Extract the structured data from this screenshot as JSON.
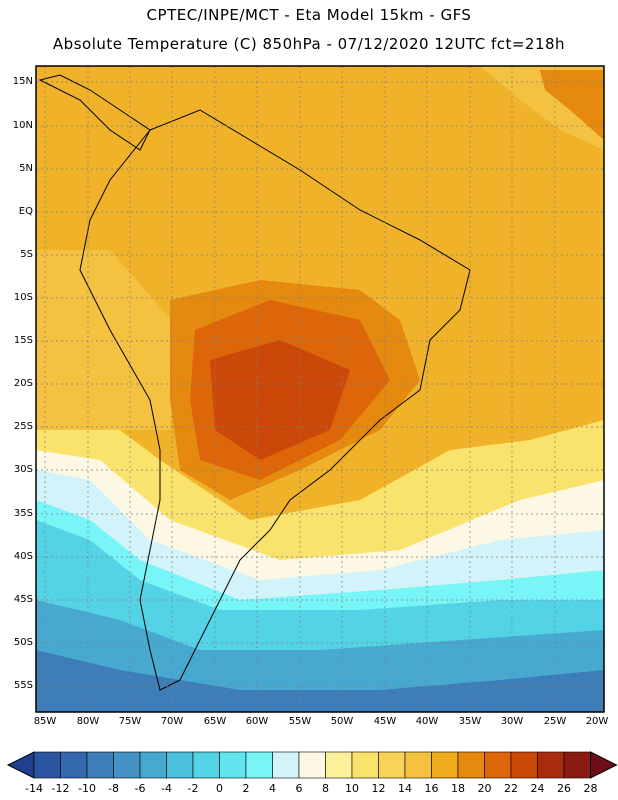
{
  "header": {
    "line1": "CPTEC/INPE/MCT -  Eta Model 15km - GFS",
    "line2": "Absolute Temperature (C) 850hPa - 07/12/2020 12UTC fct=218h"
  },
  "axes": {
    "lat_labels": [
      "15N",
      "10N",
      "5N",
      "EQ",
      "5S",
      "10S",
      "15S",
      "20S",
      "25S",
      "30S",
      "35S",
      "40S",
      "45S",
      "50S",
      "55S"
    ],
    "lon_labels": [
      "85W",
      "80W",
      "75W",
      "70W",
      "65W",
      "60W",
      "55W",
      "50W",
      "45W",
      "40W",
      "35W",
      "30W",
      "25W",
      "20W"
    ]
  },
  "colorbar": {
    "labels": [
      "-14",
      "-12",
      "-10",
      "-8",
      "-6",
      "-4",
      "-2",
      "0",
      "2",
      "4",
      "6",
      "8",
      "10",
      "12",
      "14",
      "16",
      "18",
      "20",
      "22",
      "24",
      "26",
      "28"
    ],
    "colors": [
      "#1f3f8f",
      "#2b55a0",
      "#3569ad",
      "#3d7eb9",
      "#4493c4",
      "#47a9cf",
      "#4cbfdb",
      "#55d3e6",
      "#62e4ee",
      "#78f5f7",
      "#d3f3fa",
      "#fdf8e4",
      "#fcf19b",
      "#fae36c",
      "#f8d35a",
      "#f4c140",
      "#eeac1c",
      "#e6890f",
      "#dd6608",
      "#cc4808",
      "#a82d0e",
      "#8a1c14",
      "#6e0c18"
    ]
  }
}
